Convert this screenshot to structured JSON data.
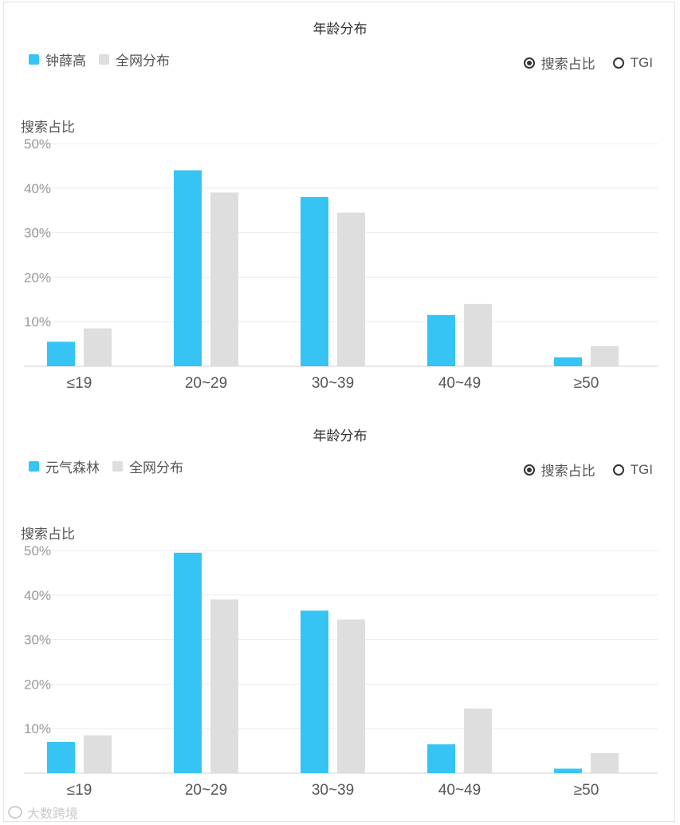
{
  "colors": {
    "primary": "#35c4f4",
    "secondary": "#dedede"
  },
  "panels": [
    {
      "title": "年龄分布",
      "legend": [
        "钟薛高",
        "全网分布"
      ],
      "radios": [
        {
          "label": "搜索占比",
          "checked": true
        },
        {
          "label": "TGI",
          "checked": false
        }
      ],
      "ylabel": "搜索占比"
    },
    {
      "title": "年龄分布",
      "legend": [
        "元气森林",
        "全网分布"
      ],
      "radios": [
        {
          "label": "搜索占比",
          "checked": true
        },
        {
          "label": "TGI",
          "checked": false
        }
      ],
      "ylabel": "搜索占比"
    }
  ],
  "chart_data": [
    {
      "type": "bar",
      "title": "年龄分布",
      "ylabel": "搜索占比",
      "categories": [
        "≤19",
        "20~29",
        "30~39",
        "40~49",
        "≥50"
      ],
      "ylim": [
        0,
        50
      ],
      "yticks": [
        "10%",
        "20%",
        "30%",
        "40%",
        "50%"
      ],
      "grid": true,
      "legend_position": "top-left",
      "series": [
        {
          "name": "钟薛高",
          "color": "#35c4f4",
          "values": [
            5.5,
            44,
            38,
            11.5,
            2
          ]
        },
        {
          "name": "全网分布",
          "color": "#dedede",
          "values": [
            8.5,
            39,
            34.5,
            14,
            4.5
          ]
        }
      ]
    },
    {
      "type": "bar",
      "title": "年龄分布",
      "ylabel": "搜索占比",
      "categories": [
        "≤19",
        "20~29",
        "30~39",
        "40~49",
        "≥50"
      ],
      "ylim": [
        0,
        50
      ],
      "yticks": [
        "10%",
        "20%",
        "30%",
        "40%",
        "50%"
      ],
      "grid": true,
      "legend_position": "top-left",
      "series": [
        {
          "name": "元气森林",
          "color": "#35c4f4",
          "values": [
            7,
            49.5,
            36.5,
            6.5,
            1
          ]
        },
        {
          "name": "全网分布",
          "color": "#dedede",
          "values": [
            8.5,
            39,
            34.5,
            14.5,
            4.5
          ]
        }
      ]
    }
  ],
  "watermark": "大数跨境"
}
